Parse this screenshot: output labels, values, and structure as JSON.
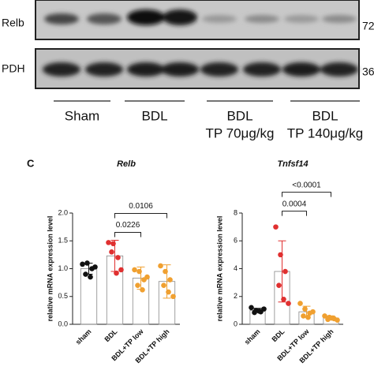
{
  "blot": {
    "rows": [
      {
        "label": "Relb",
        "size": "72"
      },
      {
        "label": "PDH",
        "size": "36"
      }
    ],
    "groups": [
      {
        "lines": [
          "Sham"
        ]
      },
      {
        "lines": [
          "BDL"
        ]
      },
      {
        "lines": [
          "BDL",
          "TP 70μg/kg"
        ]
      },
      {
        "lines": [
          "BDL",
          "TP 140μg/kg"
        ]
      }
    ]
  },
  "panel_label": "C",
  "chart_data": [
    {
      "type": "bar",
      "title": "Relb",
      "ylabel": "relative mRNA expression level",
      "categories": [
        "sham",
        "BDL",
        "BDL+TP low",
        "BDL+TP high"
      ],
      "values": [
        1.0,
        1.23,
        0.83,
        0.77
      ],
      "errors": [
        0.1,
        0.28,
        0.2,
        0.3
      ],
      "points": [
        [
          1.08,
          1.1,
          1.0,
          0.9,
          0.85,
          1.03
        ],
        [
          1.47,
          1.45,
          1.2,
          1.3,
          0.92,
          0.98
        ],
        [
          0.98,
          0.95,
          0.8,
          0.7,
          0.62,
          0.85
        ],
        [
          1.05,
          0.95,
          0.8,
          0.7,
          0.58,
          0.5
        ]
      ],
      "colors": [
        "#111111",
        "#e03030",
        "#f0a030",
        "#f0a030"
      ],
      "ylim": [
        0,
        2
      ],
      "yticks": [
        {
          "value": 0,
          "label": "0.0"
        },
        {
          "value": 0.5,
          "label": "0.5"
        },
        {
          "value": 1,
          "label": "1.0"
        },
        {
          "value": 1.5,
          "label": "1.5"
        },
        {
          "value": 2,
          "label": "2.0"
        }
      ],
      "annotations": [
        {
          "label": "0.0226",
          "between": [
            "BDL",
            "BDL+TP low"
          ]
        },
        {
          "label": "0.0106",
          "between": [
            "BDL",
            "BDL+TP high"
          ]
        }
      ]
    },
    {
      "type": "bar",
      "title": "Tnfsf14",
      "ylabel": "relative mRNA expression level",
      "categories": [
        "sham",
        "BDL",
        "BDL+TP low",
        "BDL+TP high"
      ],
      "values": [
        1.0,
        3.8,
        0.9,
        0.45
      ],
      "errors": [
        0.15,
        2.2,
        0.4,
        0.15
      ],
      "points": [
        [
          1.2,
          1.0,
          0.9,
          0.85,
          0.95,
          1.1
        ],
        [
          7.0,
          5.0,
          3.8,
          2.8,
          1.8,
          1.5
        ],
        [
          1.5,
          1.1,
          0.8,
          0.6,
          0.5,
          0.9
        ],
        [
          0.6,
          0.5,
          0.4,
          0.35,
          0.45,
          0.3
        ]
      ],
      "colors": [
        "#111111",
        "#e03030",
        "#f0a030",
        "#f0a030"
      ],
      "ylim": [
        0,
        8
      ],
      "yticks": [
        0,
        2,
        4,
        6,
        8
      ],
      "annotations": [
        {
          "label": "0.0004",
          "between": [
            "BDL",
            "BDL+TP low"
          ]
        },
        {
          "label": "<0.0001",
          "between": [
            "BDL",
            "BDL+TP high"
          ]
        }
      ]
    }
  ]
}
